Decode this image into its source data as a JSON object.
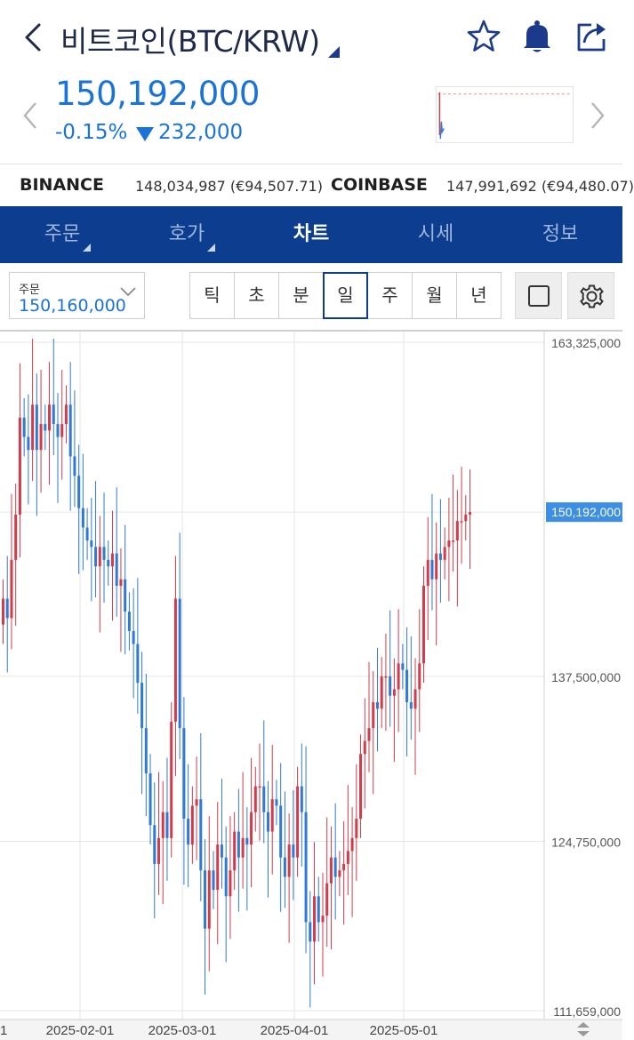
{
  "header": {
    "title": "비트코인(BTC/KRW)",
    "icons": [
      "back-arrow-icon",
      "star-icon",
      "bell-icon",
      "share-icon"
    ]
  },
  "price": {
    "current": "150,192,000",
    "change_pct": "-0.15%",
    "change_amount": "232,000",
    "color": "#1a73d9"
  },
  "exchanges": [
    {
      "name": "BINANCE",
      "value": "148,034,987 (€94,507.71)"
    },
    {
      "name": "COINBASE",
      "value": "147,991,692 (€94,480.07)"
    }
  ],
  "tabs": [
    {
      "label": "주문",
      "active": false,
      "caret": true
    },
    {
      "label": "호가",
      "active": false,
      "caret": true
    },
    {
      "label": "차트",
      "active": true,
      "caret": false
    },
    {
      "label": "시세",
      "active": false,
      "caret": false
    },
    {
      "label": "정보",
      "active": false,
      "caret": false
    }
  ],
  "toolbar": {
    "order_label": "주문",
    "order_value": "150,160,000",
    "periods": [
      "틱",
      "초",
      "분",
      "일",
      "주",
      "월",
      "년"
    ],
    "active_period": "일"
  },
  "chart_data": {
    "type": "candlestick",
    "y_ticks": [
      "163,325,000",
      "137,500,000",
      "124,750,000",
      "111,659,000"
    ],
    "x_ticks": [
      "1",
      "2025-02-01",
      "2025-03-01",
      "2025-04-01",
      "2025-05-01"
    ],
    "ylim": [
      111659000,
      163325000
    ],
    "current_price_label": "150,192,000",
    "current_price": 150192000,
    "up_color": "#d33b4a",
    "down_color": "#2f7ad6",
    "closes": [
      143500000,
      142000000,
      146500000,
      150000000,
      157500000,
      156000000,
      155000000,
      158500000,
      155000000,
      157000000,
      156500000,
      158500000,
      157000000,
      156000000,
      157000000,
      158500000,
      154500000,
      153000000,
      150500000,
      149000000,
      148000000,
      147500000,
      146000000,
      147500000,
      146500000,
      146000000,
      147000000,
      144500000,
      145000000,
      142500000,
      141000000,
      140000000,
      137000000,
      133500000,
      130000000,
      126000000,
      123000000,
      125000000,
      127000000,
      125000000,
      134000000,
      143500000,
      133500000,
      126500000,
      124500000,
      127500000,
      128000000,
      122500000,
      118000000,
      122500000,
      121000000,
      124500000,
      123500000,
      120500000,
      122500000,
      125500000,
      123500000,
      125000000,
      124500000,
      127000000,
      129000000,
      129000000,
      127000000,
      125500000,
      128000000,
      127500000,
      123500000,
      122000000,
      124500000,
      123500000,
      129000000,
      127000000,
      118500000,
      117000000,
      120500000,
      118500000,
      119000000,
      121500000,
      123500000,
      122000000,
      122500000,
      123000000,
      124000000,
      125000000,
      126500000,
      131500000,
      132500000,
      133500000,
      135500000,
      135000000,
      137500000,
      137500000,
      136000000,
      136500000,
      138500000,
      138000000,
      135500000,
      135000000,
      136500000,
      138500000,
      144500000,
      146500000,
      145000000,
      147000000,
      146500000,
      147500000,
      148000000,
      148000000,
      149500000,
      149500000,
      150000000,
      150192000
    ]
  }
}
